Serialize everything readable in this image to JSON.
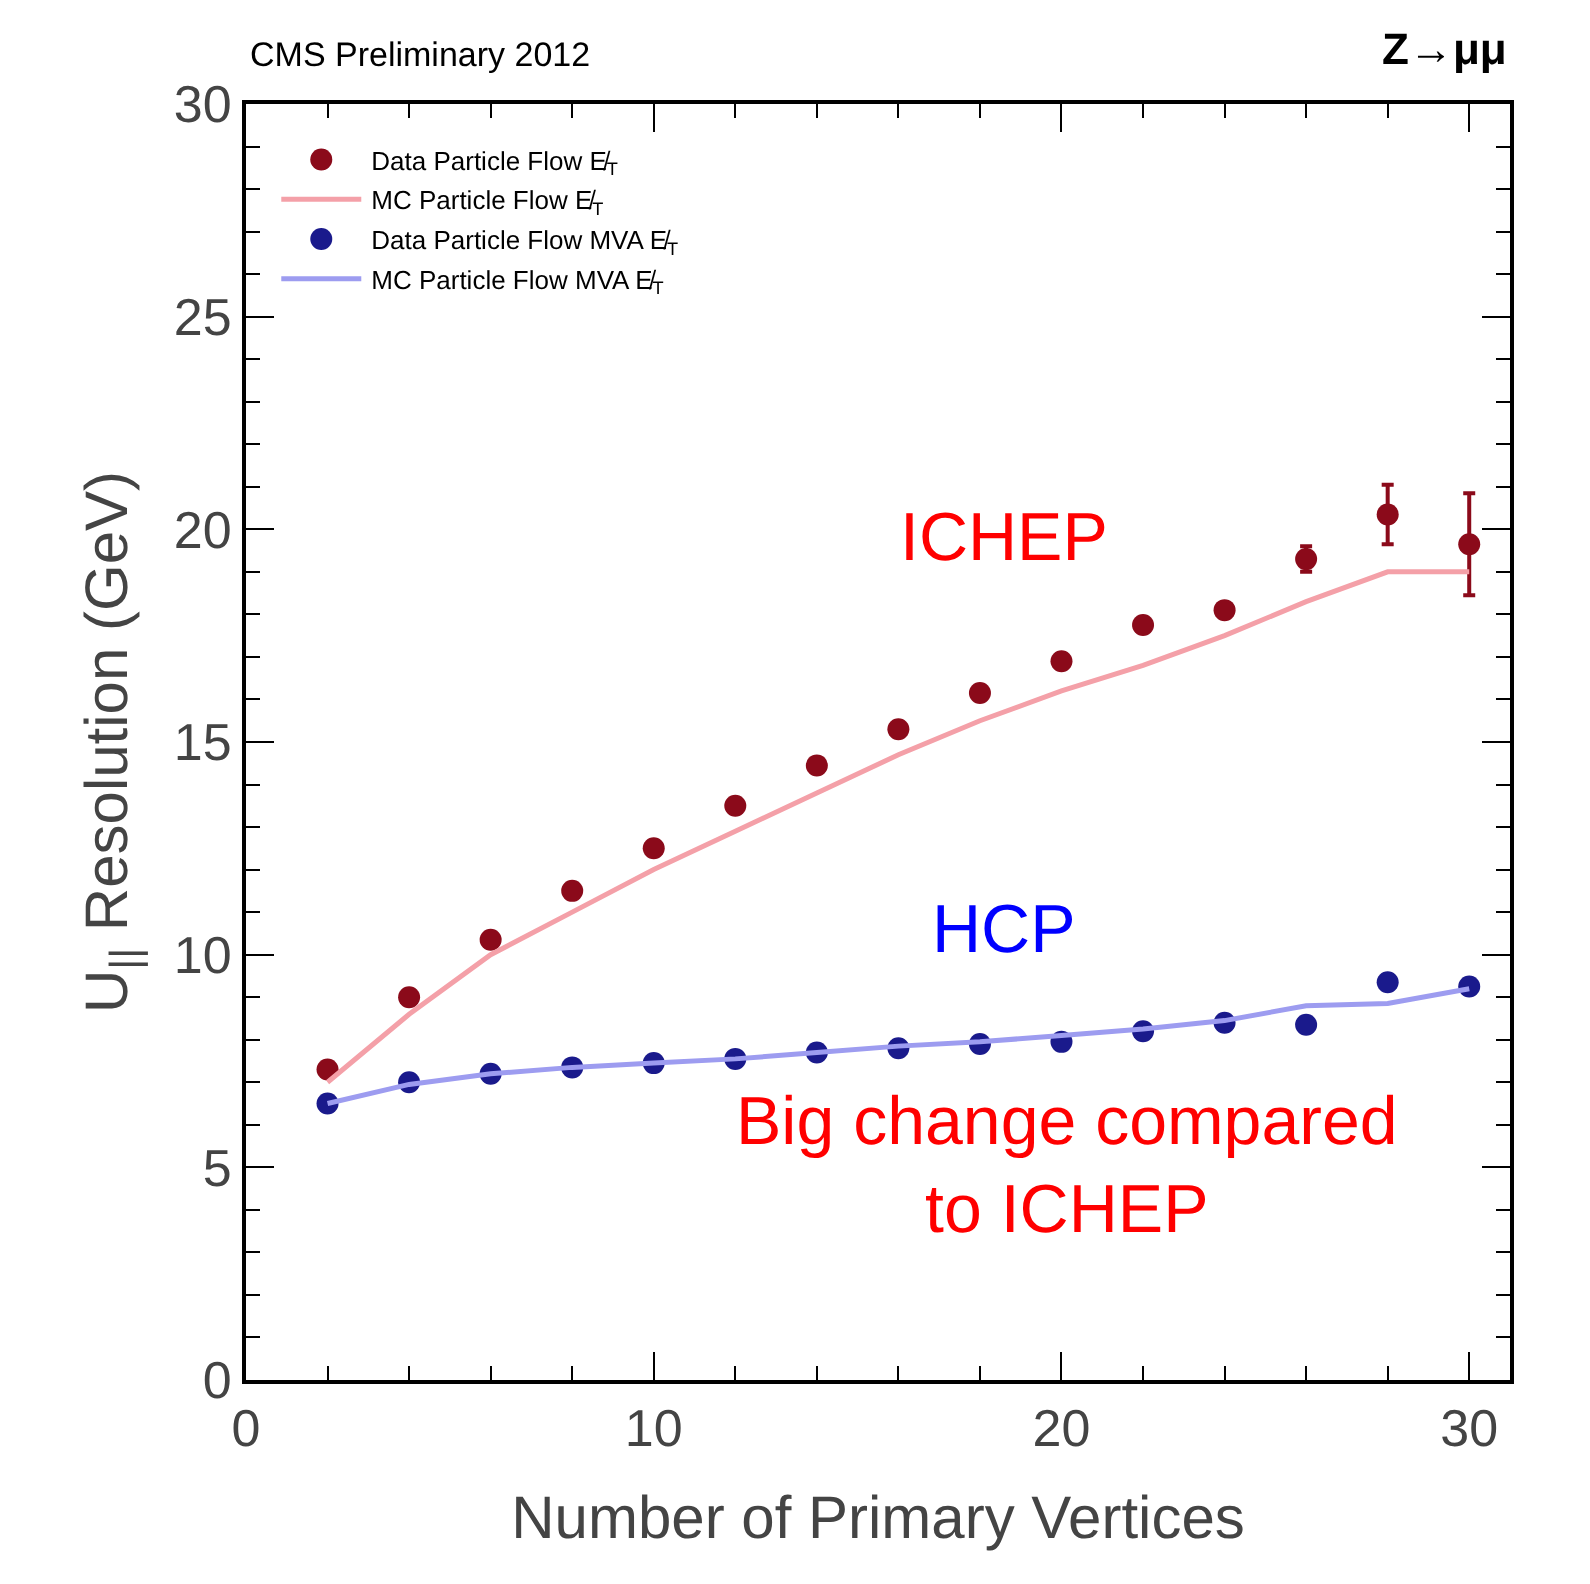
{
  "chart_data": {
    "type": "scatter",
    "title": "CMS Preliminary 2012",
    "subtitle": "Z→μμ",
    "xlabel": "Number of Primary Vertices",
    "ylabel": "U$_{||}$ Resolution (GeV)",
    "x": [
      2,
      4,
      6,
      8,
      10,
      12,
      14,
      16,
      18,
      20,
      22,
      24,
      26,
      28,
      30
    ],
    "series": [
      {
        "name": "Data Particle Flow E̸$_{T}$",
        "color": "#8b0a1a",
        "marker": "circle",
        "values": [
          7.3,
          9.0,
          10.35,
          11.5,
          12.5,
          13.5,
          14.45,
          15.3,
          16.15,
          16.9,
          17.75,
          18.1,
          19.3,
          20.35,
          19.65
        ],
        "errors": [
          null,
          null,
          null,
          null,
          null,
          null,
          null,
          null,
          null,
          null,
          null,
          null,
          0.3,
          0.7,
          1.2
        ]
      },
      {
        "name": "MC Particle Flow E̸$_{T}$",
        "type": "line",
        "color": "#f4a0a8",
        "marker": "none",
        "values": [
          7.0,
          8.6,
          10.0,
          11.0,
          12.0,
          12.9,
          13.8,
          14.7,
          15.5,
          16.2,
          16.8,
          17.5,
          18.3,
          19.0,
          19.0
        ]
      },
      {
        "name": "Data Particle Flow MVA E̸$_{T}$",
        "color": "#1a1a8c",
        "marker": "circle",
        "values": [
          6.5,
          7.0,
          7.2,
          7.35,
          7.45,
          7.55,
          7.7,
          7.8,
          7.9,
          7.95,
          8.2,
          8.4,
          8.35,
          9.35,
          9.25
        ]
      },
      {
        "name": "MC Particle Flow MVA E̸$_{T}$",
        "type": "line",
        "color": "#9d9cf0",
        "marker": "none",
        "values": [
          6.5,
          6.95,
          7.2,
          7.35,
          7.45,
          7.55,
          7.7,
          7.85,
          7.95,
          8.1,
          8.25,
          8.45,
          8.8,
          8.85,
          9.2
        ]
      }
    ],
    "xlim": [
      0,
      31
    ],
    "xticks": [
      0,
      10,
      20,
      30
    ],
    "ylim": [
      0,
      30
    ],
    "yticks": [
      0,
      5,
      10,
      15,
      20,
      25,
      30
    ],
    "grid": false,
    "legend": "top left",
    "annotations": [
      "ICHEP",
      "HCP",
      "Big change compared to ICHEP"
    ]
  }
}
